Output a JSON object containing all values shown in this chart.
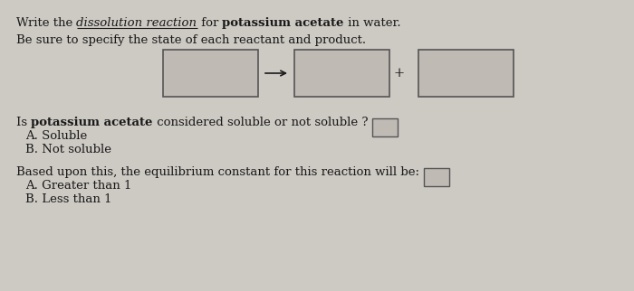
{
  "background_color": "#cdc9c3",
  "text_color": "#1a1a1a",
  "box_facecolor": "#bfbab4",
  "box_edgecolor": "#555555",
  "small_box_facecolor": "#bfbab4",
  "small_box_edgecolor": "#555555",
  "arrow_color": "#1a1a1a",
  "font_size_main": 9.5,
  "line1_seg1": "Write the ",
  "line1_seg2": "dissolution reaction",
  "line1_seg3": " for ",
  "line1_seg4": "potassium acetate",
  "line1_seg5": " in water.",
  "line2": "Be sure to specify the state of each reactant and product.",
  "q1_seg1": "Is ",
  "q1_seg2": "potassium acetate",
  "q1_seg3": " considered soluble or not soluble ?",
  "q1_optA": "A. Soluble",
  "q1_optB": "B. Not soluble",
  "q2_text": "Based upon this, the equilibrium constant for this reaction will be:",
  "q2_optA": "A. Greater than 1",
  "q2_optB": "B. Less than 1"
}
